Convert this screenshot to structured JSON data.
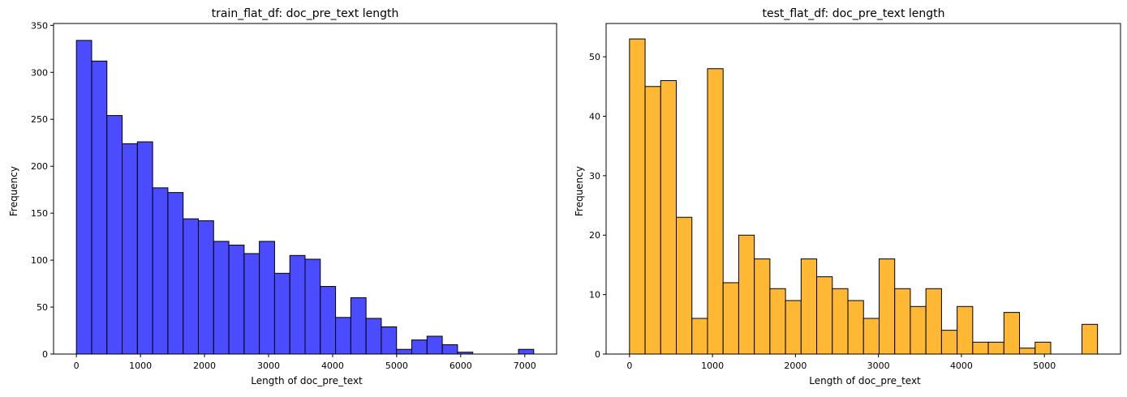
{
  "chart_data": [
    {
      "type": "bar",
      "title": "train_flat_df: doc_pre_text length",
      "xlabel": "Length of doc_pre_text",
      "ylabel": "Frequency",
      "color": "#4b4bff",
      "edge_color": "#000000",
      "xlim": [
        -357,
        7497
      ],
      "ylim": [
        0,
        352
      ],
      "xticks": [
        0,
        1000,
        2000,
        3000,
        4000,
        5000,
        6000,
        7000
      ],
      "yticks": [
        0,
        50,
        100,
        150,
        200,
        250,
        300,
        350
      ],
      "bin_start": 0,
      "bin_width": 238,
      "values": [
        334,
        312,
        254,
        224,
        226,
        177,
        172,
        144,
        142,
        120,
        116,
        107,
        120,
        86,
        105,
        101,
        72,
        39,
        60,
        38,
        29,
        5,
        15,
        19,
        10,
        2,
        0,
        0,
        0,
        5
      ],
      "grid": false
    },
    {
      "type": "bar",
      "title": "test_flat_df: doc_pre_text length",
      "xlabel": "Length of doc_pre_text",
      "ylabel": "Frequency",
      "color": "#ffb834",
      "edge_color": "#000000",
      "xlim": [
        -282,
        5917
      ],
      "ylim": [
        0,
        55.6
      ],
      "xticks": [
        0,
        1000,
        2000,
        3000,
        4000,
        5000
      ],
      "yticks": [
        0,
        10,
        20,
        30,
        40,
        50
      ],
      "bin_start": 0,
      "bin_width": 188,
      "values": [
        53,
        45,
        46,
        23,
        6,
        48,
        12,
        20,
        16,
        11,
        9,
        16,
        13,
        11,
        9,
        6,
        16,
        11,
        8,
        11,
        4,
        8,
        2,
        2,
        7,
        1,
        2,
        0,
        0,
        5
      ],
      "grid": false
    }
  ]
}
